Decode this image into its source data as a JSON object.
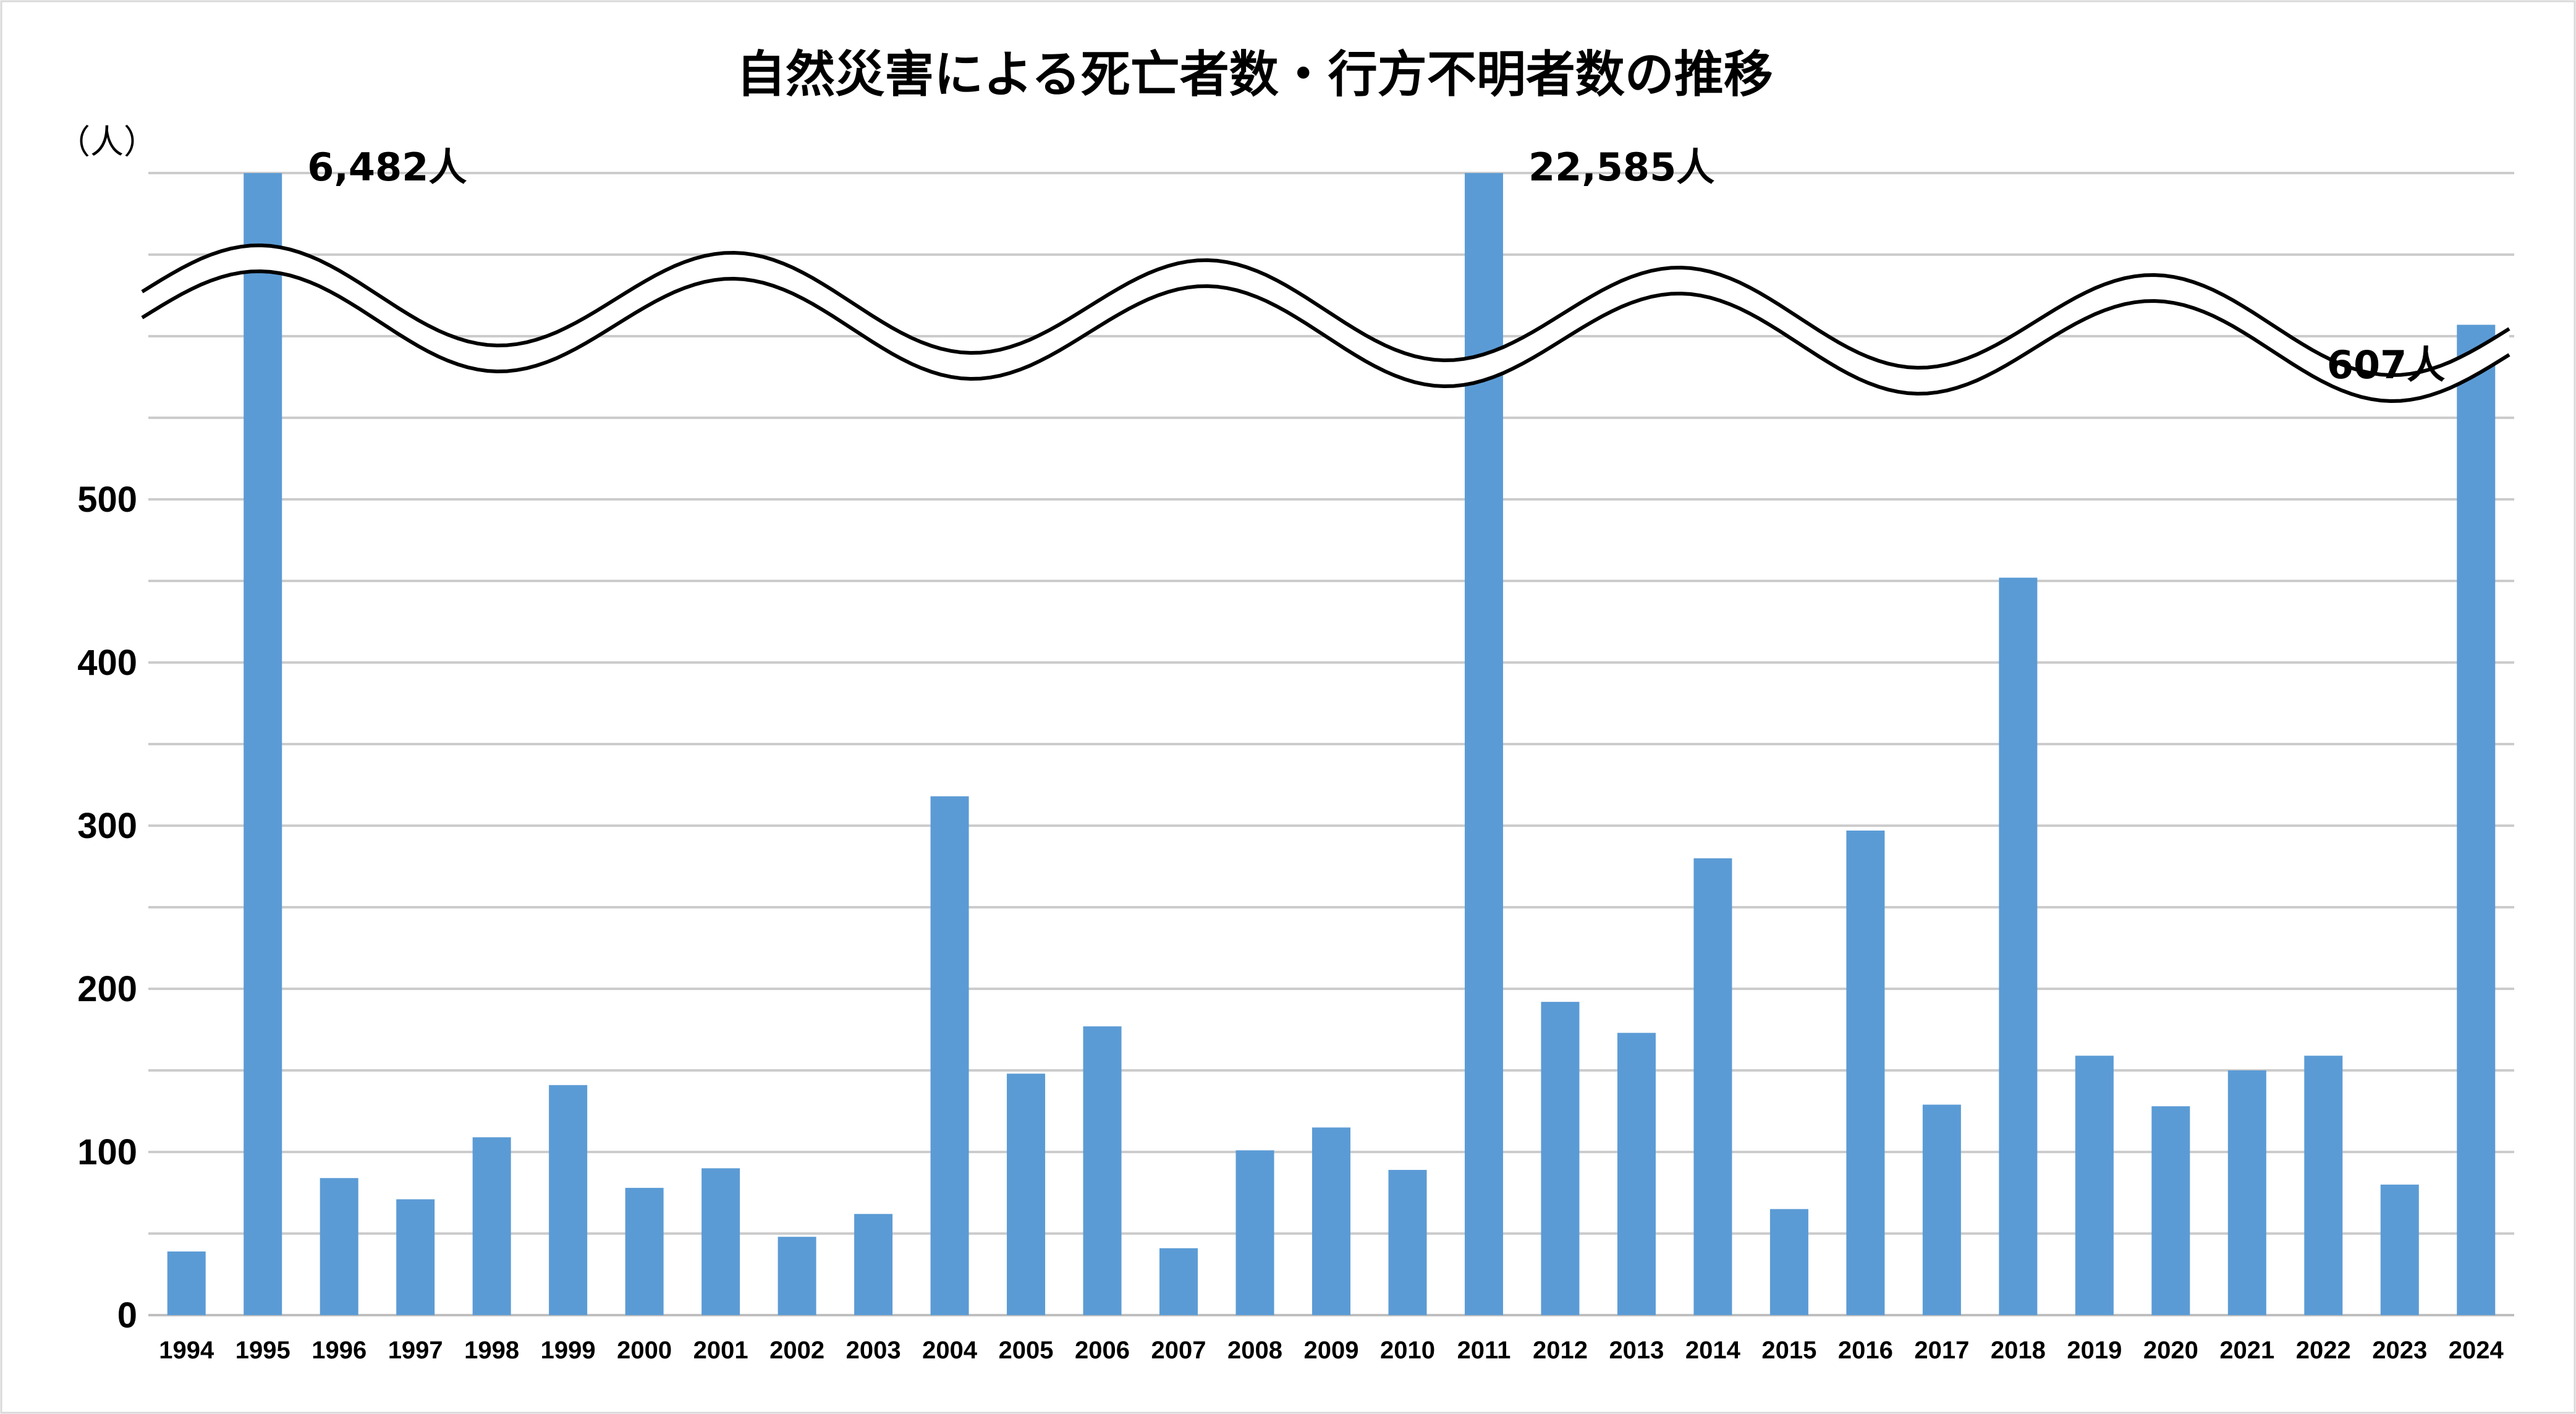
{
  "chart_data": {
    "type": "bar",
    "title": "自然災害による死亡者数・行方不明者数の推移",
    "unit_label": "（人）",
    "categories": [
      "1994",
      "1995",
      "1996",
      "1997",
      "1998",
      "1999",
      "2000",
      "2001",
      "2002",
      "2003",
      "2004",
      "2005",
      "2006",
      "2007",
      "2008",
      "2009",
      "2010",
      "2011",
      "2012",
      "2013",
      "2014",
      "2015",
      "2016",
      "2017",
      "2018",
      "2019",
      "2020",
      "2021",
      "2022",
      "2023",
      "2024"
    ],
    "values": [
      39,
      6482,
      84,
      71,
      109,
      141,
      78,
      90,
      48,
      62,
      318,
      148,
      177,
      41,
      101,
      115,
      89,
      22585,
      192,
      173,
      280,
      65,
      297,
      129,
      452,
      159,
      128,
      150,
      159,
      80,
      607
    ],
    "y_ticks": [
      "0",
      "100",
      "200",
      "300",
      "400",
      "500"
    ],
    "ylim": [
      0,
      700
    ],
    "axis_break": true,
    "grid": true,
    "bar_color": "#5b9bd5",
    "annotations": [
      {
        "category": "1995",
        "text": "6,482人"
      },
      {
        "category": "2011",
        "text": "22,585人"
      },
      {
        "category": "2024",
        "text": "607人"
      }
    ]
  }
}
